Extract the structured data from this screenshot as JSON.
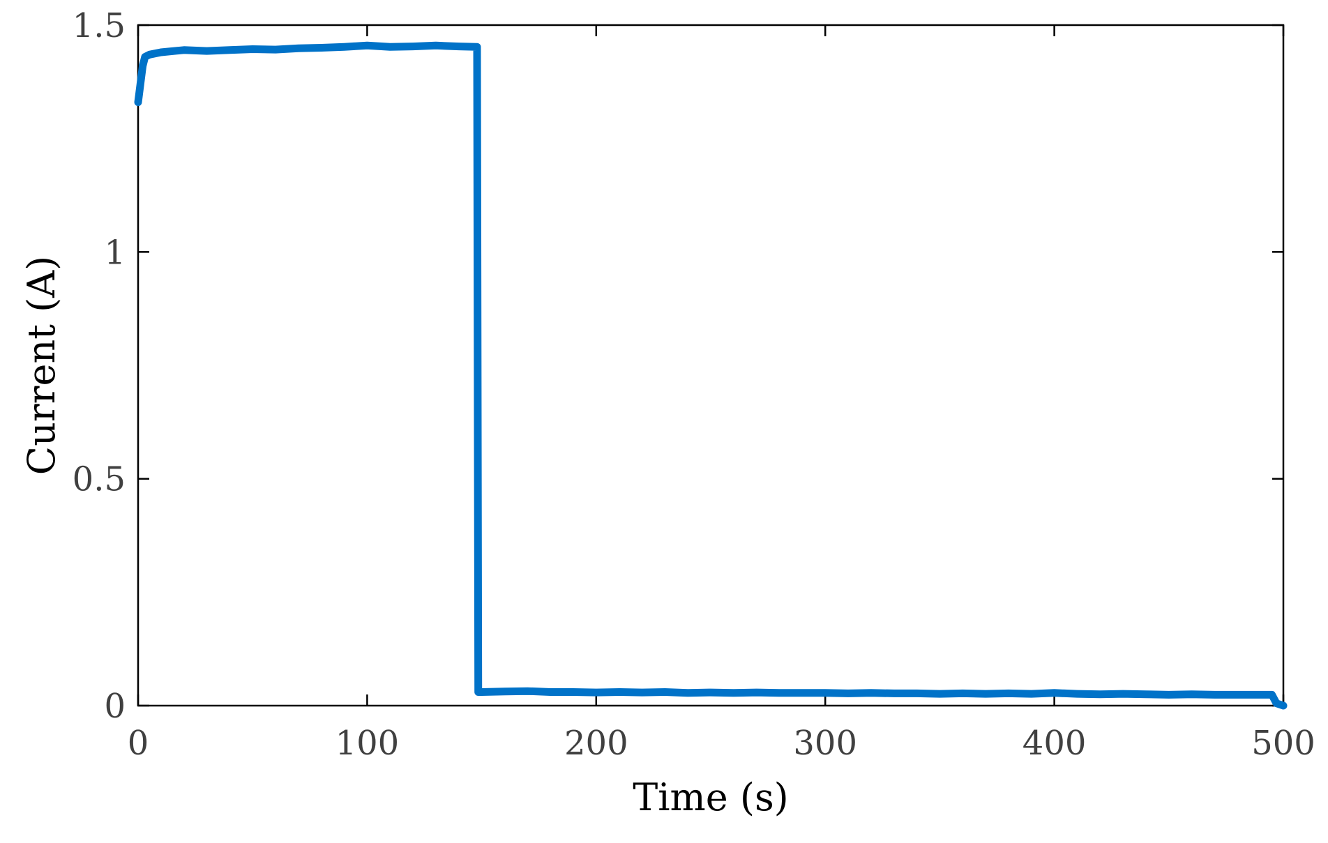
{
  "chart_data": {
    "type": "line",
    "title": "",
    "xlabel": "Time (s)",
    "ylabel": "Current (A)",
    "xlim": [
      0,
      500
    ],
    "ylim": [
      0,
      1.5
    ],
    "xticks": [
      0,
      100,
      200,
      300,
      400,
      500
    ],
    "xtick_labels": [
      "0",
      "100",
      "200",
      "300",
      "400",
      "500"
    ],
    "yticks": [
      0,
      0.5,
      1,
      1.5
    ],
    "ytick_labels": [
      "0",
      "0.5",
      "1",
      "1.5"
    ],
    "grid": false,
    "legend": "none",
    "series": [
      {
        "color": "#0072C8",
        "x": [
          0,
          1,
          2,
          3,
          5,
          10,
          20,
          30,
          40,
          50,
          60,
          70,
          80,
          90,
          100,
          110,
          120,
          130,
          140,
          148,
          148.5,
          150,
          160,
          170,
          180,
          190,
          200,
          210,
          220,
          230,
          240,
          250,
          260,
          270,
          280,
          290,
          300,
          310,
          320,
          330,
          340,
          350,
          360,
          370,
          380,
          390,
          400,
          410,
          420,
          430,
          440,
          450,
          460,
          470,
          480,
          490,
          495,
          497,
          500
        ],
        "y": [
          1.33,
          1.37,
          1.41,
          1.43,
          1.435,
          1.44,
          1.445,
          1.443,
          1.445,
          1.447,
          1.446,
          1.449,
          1.45,
          1.452,
          1.455,
          1.452,
          1.453,
          1.455,
          1.453,
          1.452,
          0.03,
          0.03,
          0.031,
          0.032,
          0.03,
          0.03,
          0.029,
          0.03,
          0.029,
          0.03,
          0.028,
          0.029,
          0.028,
          0.029,
          0.028,
          0.028,
          0.028,
          0.027,
          0.028,
          0.027,
          0.027,
          0.026,
          0.027,
          0.026,
          0.027,
          0.026,
          0.028,
          0.026,
          0.025,
          0.026,
          0.025,
          0.024,
          0.025,
          0.024,
          0.024,
          0.024,
          0.024,
          0.005,
          0.0
        ]
      }
    ]
  }
}
